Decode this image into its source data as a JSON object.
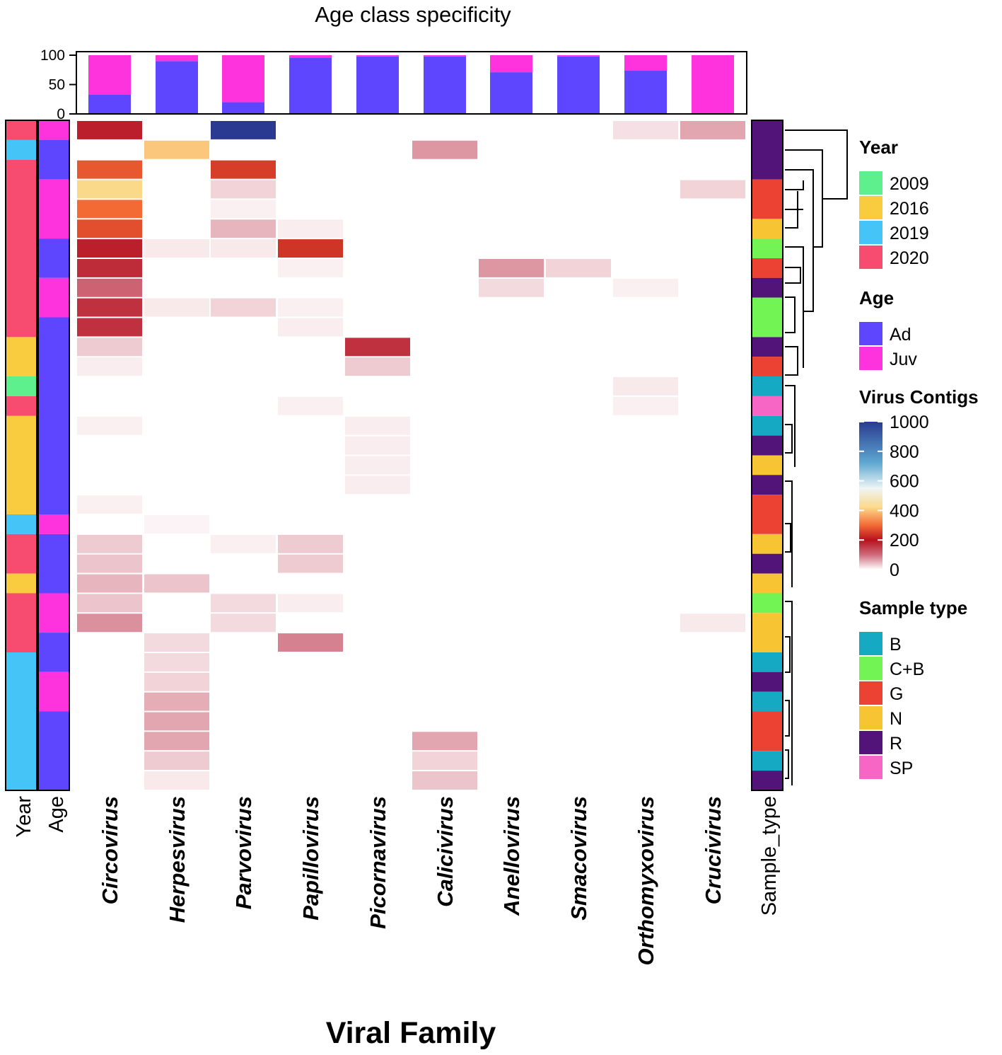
{
  "chart_data": {
    "type": "heatmap",
    "title": "Age class specificity",
    "xlabel": "Viral Family",
    "families": [
      "Circovirus",
      "Herpesvirus",
      "Parvovirus",
      "Papillovirus",
      "Picornavirus",
      "Calicivirus",
      "Anellovirus",
      "Smacovirus",
      "Orthomyxovirus",
      "Crucivirus"
    ],
    "top_bar": {
      "ylim": [
        0,
        100
      ],
      "yticks": [
        "100",
        "50",
        "0"
      ],
      "series": [
        {
          "name": "Ad",
          "values": [
            33,
            90,
            20,
            96,
            98,
            98,
            71,
            98,
            74,
            0
          ]
        },
        {
          "name": "Juv",
          "values": [
            67,
            10,
            80,
            4,
            2,
            2,
            29,
            2,
            26,
            100
          ]
        }
      ]
    },
    "side_annotation_labels": [
      "Year",
      "Age",
      "Sample_type"
    ],
    "colorbar": {
      "title": "Virus Contigs",
      "range": [
        0,
        1000
      ],
      "ticks": [
        "1000",
        "800",
        "600",
        "400",
        "200",
        "0"
      ]
    },
    "legends": {
      "year": {
        "title": "Year",
        "items": [
          {
            "label": "2009",
            "color": "#5ef08c"
          },
          {
            "label": "2016",
            "color": "#f8cc3e"
          },
          {
            "label": "2019",
            "color": "#45c4f7"
          },
          {
            "label": "2020",
            "color": "#f74b70"
          }
        ]
      },
      "age": {
        "title": "Age",
        "items": [
          {
            "label": "Ad",
            "color": "#5e45ff"
          },
          {
            "label": "Juv",
            "color": "#ff33dd"
          }
        ]
      },
      "sample": {
        "title": "Sample type",
        "items": [
          {
            "label": "B",
            "color": "#15a9c3"
          },
          {
            "label": "C+B",
            "color": "#72f454"
          },
          {
            "label": "G",
            "color": "#eb4233"
          },
          {
            "label": "N",
            "color": "#f7c533"
          },
          {
            "label": "R",
            "color": "#521479"
          },
          {
            "label": "SP",
            "color": "#f765c5"
          }
        ]
      }
    },
    "rows": [
      {
        "year": "2020",
        "age": "Juv",
        "sample": "R",
        "values": [
          185,
          0,
          1000,
          0,
          0,
          0,
          0,
          0,
          20,
          60
        ]
      },
      {
        "year": "2019",
        "age": "Ad",
        "sample": "R",
        "values": [
          0,
          400,
          0,
          0,
          0,
          70,
          0,
          0,
          0,
          0
        ]
      },
      {
        "year": "2020",
        "age": "Ad",
        "sample": "R",
        "values": [
          280,
          0,
          250,
          0,
          0,
          0,
          0,
          0,
          0,
          0
        ]
      },
      {
        "year": "2020",
        "age": "Juv",
        "sample": "G",
        "values": [
          420,
          0,
          30,
          0,
          0,
          0,
          0,
          0,
          0,
          30
        ]
      },
      {
        "year": "2020",
        "age": "Juv",
        "sample": "G",
        "values": [
          300,
          0,
          10,
          0,
          0,
          0,
          0,
          0,
          0,
          0
        ]
      },
      {
        "year": "2020",
        "age": "Juv",
        "sample": "N",
        "values": [
          270,
          0,
          50,
          12,
          0,
          0,
          0,
          0,
          0,
          0
        ]
      },
      {
        "year": "2020",
        "age": "Ad",
        "sample": "C+B",
        "values": [
          185,
          15,
          15,
          240,
          0,
          0,
          0,
          0,
          0,
          0
        ]
      },
      {
        "year": "2020",
        "age": "Ad",
        "sample": "G",
        "values": [
          170,
          0,
          0,
          10,
          0,
          0,
          70,
          30,
          0,
          0
        ]
      },
      {
        "year": "2020",
        "age": "Juv",
        "sample": "R",
        "values": [
          110,
          0,
          0,
          0,
          0,
          0,
          25,
          0,
          10,
          0
        ]
      },
      {
        "year": "2020",
        "age": "Juv",
        "sample": "C+B",
        "values": [
          165,
          15,
          30,
          10,
          0,
          0,
          0,
          0,
          0,
          0
        ]
      },
      {
        "year": "2020",
        "age": "Ad",
        "sample": "C+B",
        "values": [
          165,
          0,
          0,
          12,
          0,
          0,
          0,
          0,
          0,
          0
        ]
      },
      {
        "year": "2016",
        "age": "Ad",
        "sample": "R",
        "values": [
          35,
          0,
          0,
          0,
          165,
          0,
          0,
          0,
          0,
          0
        ]
      },
      {
        "year": "2016",
        "age": "Ad",
        "sample": "G",
        "values": [
          12,
          0,
          0,
          0,
          35,
          0,
          0,
          0,
          0,
          0
        ]
      },
      {
        "year": "2009",
        "age": "Ad",
        "sample": "B",
        "values": [
          0,
          0,
          0,
          0,
          0,
          0,
          0,
          0,
          15,
          0
        ]
      },
      {
        "year": "2020",
        "age": "Ad",
        "sample": "SP",
        "values": [
          0,
          0,
          0,
          10,
          0,
          0,
          0,
          0,
          10,
          0
        ]
      },
      {
        "year": "2016",
        "age": "Ad",
        "sample": "B",
        "values": [
          10,
          0,
          0,
          0,
          12,
          0,
          0,
          0,
          0,
          0
        ]
      },
      {
        "year": "2016",
        "age": "Ad",
        "sample": "R",
        "values": [
          0,
          0,
          0,
          0,
          12,
          0,
          0,
          0,
          0,
          0
        ]
      },
      {
        "year": "2016",
        "age": "Ad",
        "sample": "N",
        "values": [
          0,
          0,
          0,
          0,
          12,
          0,
          0,
          0,
          0,
          0
        ]
      },
      {
        "year": "2016",
        "age": "Ad",
        "sample": "R",
        "values": [
          0,
          0,
          0,
          0,
          12,
          0,
          0,
          0,
          0,
          0
        ]
      },
      {
        "year": "2016",
        "age": "Ad",
        "sample": "G",
        "values": [
          10,
          0,
          0,
          0,
          0,
          0,
          0,
          0,
          0,
          0
        ]
      },
      {
        "year": "2019",
        "age": "Juv",
        "sample": "G",
        "values": [
          0,
          8,
          0,
          0,
          0,
          0,
          0,
          0,
          0,
          0
        ]
      },
      {
        "year": "2020",
        "age": "Ad",
        "sample": "N",
        "values": [
          35,
          0,
          10,
          35,
          0,
          0,
          0,
          0,
          0,
          0
        ]
      },
      {
        "year": "2020",
        "age": "Ad",
        "sample": "R",
        "values": [
          40,
          0,
          0,
          35,
          0,
          0,
          0,
          0,
          0,
          0
        ]
      },
      {
        "year": "2016",
        "age": "Ad",
        "sample": "N",
        "values": [
          50,
          40,
          0,
          0,
          0,
          0,
          0,
          0,
          0,
          0
        ]
      },
      {
        "year": "2020",
        "age": "Juv",
        "sample": "C+B",
        "values": [
          40,
          0,
          25,
          12,
          0,
          0,
          0,
          0,
          0,
          0
        ]
      },
      {
        "year": "2020",
        "age": "Juv",
        "sample": "N",
        "values": [
          75,
          0,
          25,
          0,
          0,
          0,
          0,
          0,
          0,
          15
        ]
      },
      {
        "year": "2020",
        "age": "Ad",
        "sample": "N",
        "values": [
          0,
          25,
          0,
          85,
          0,
          0,
          0,
          0,
          0,
          0
        ]
      },
      {
        "year": "2019",
        "age": "Ad",
        "sample": "B",
        "values": [
          0,
          25,
          0,
          0,
          0,
          0,
          0,
          0,
          0,
          0
        ]
      },
      {
        "year": "2019",
        "age": "Juv",
        "sample": "R",
        "values": [
          0,
          30,
          0,
          0,
          0,
          0,
          0,
          0,
          0,
          0
        ]
      },
      {
        "year": "2019",
        "age": "Juv",
        "sample": "B",
        "values": [
          0,
          55,
          0,
          0,
          0,
          0,
          0,
          0,
          0,
          0
        ]
      },
      {
        "year": "2019",
        "age": "Ad",
        "sample": "G",
        "values": [
          0,
          60,
          0,
          0,
          0,
          0,
          0,
          0,
          0,
          0
        ]
      },
      {
        "year": "2019",
        "age": "Ad",
        "sample": "G",
        "values": [
          0,
          60,
          0,
          0,
          0,
          60,
          0,
          0,
          0,
          0
        ]
      },
      {
        "year": "2019",
        "age": "Ad",
        "sample": "B",
        "values": [
          0,
          35,
          0,
          0,
          0,
          30,
          0,
          0,
          0,
          0
        ]
      },
      {
        "year": "2019",
        "age": "Ad",
        "sample": "R",
        "values": [
          0,
          15,
          0,
          0,
          0,
          40,
          0,
          0,
          0,
          0
        ]
      }
    ]
  }
}
